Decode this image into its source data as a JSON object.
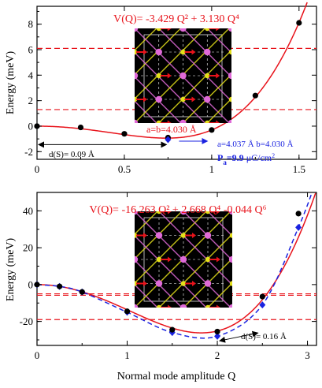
{
  "colors": {
    "red": "#e8131b",
    "blue": "#1a22e0",
    "black": "#000000",
    "atom_pink": "#e06ad8",
    "atom_yellow": "#e4e01a",
    "inset_bg": "#000000"
  },
  "xlabel": "Normal mode amplitude Q",
  "chart_data": [
    {
      "type": "line",
      "ylabel": "Energy (meV)",
      "xlim": [
        0,
        1.6
      ],
      "ylim": [
        -2.6,
        9.4
      ],
      "xticks": [
        0,
        0.5,
        1,
        1.5
      ],
      "xtick_labels": [
        "0",
        "0.5",
        "1",
        "1.5"
      ],
      "yticks": [
        -2,
        0,
        2,
        4,
        6,
        8
      ],
      "ytick_labels": [
        "-2",
        "0",
        "2",
        "4",
        "6",
        "8"
      ],
      "formula": "V(Q)= -3.429 Q² + 3.130 Q⁴",
      "fit": {
        "a2": -3.429,
        "a4": 3.13,
        "a6": 0
      },
      "points": {
        "x": [
          0,
          0.25,
          0.5,
          0.75,
          1.0,
          1.25,
          1.5
        ],
        "y": [
          0.0,
          -0.1,
          -0.6,
          -0.9,
          -0.3,
          2.4,
          8.1
        ]
      },
      "blue_point": {
        "x": 0.75,
        "y": -1.05
      },
      "hlines": [
        6.1,
        1.3
      ],
      "annotations": {
        "inset_label": "a=b=4.030 Å",
        "ds_label": "d(S)= 0.09 Å",
        "lattice_label": "a=4.037 Å b=4.030 Å",
        "polar_label": "P",
        "polar_sub": "a",
        "polar_value": "=9.9",
        "polar_unit": " μC/cm",
        "polar_exp": "2"
      }
    },
    {
      "type": "line",
      "ylabel": "Energy (meV)",
      "xlim": [
        0,
        3.1
      ],
      "ylim": [
        -33,
        50
      ],
      "xticks": [
        0,
        1,
        2,
        3
      ],
      "xtick_labels": [
        "0",
        "1",
        "2",
        "3"
      ],
      "yticks": [
        -20,
        0,
        20,
        40
      ],
      "ytick_labels": [
        "-20",
        "0",
        "20",
        "40"
      ],
      "formula": "V(Q)= -16.263 Q² + 2.668 Q⁴ -0.044 Q⁶",
      "fit": {
        "a2": -16.263,
        "a4": 2.668,
        "a6": -0.044
      },
      "points": {
        "x": [
          0,
          0.25,
          0.5,
          1.0,
          1.5,
          2.0,
          2.5,
          2.9
        ],
        "y": [
          0.0,
          -1.0,
          -4.0,
          -14.5,
          -24.5,
          -25.5,
          -6.5,
          38.5
        ]
      },
      "blue_points": {
        "x": [
          0,
          0.25,
          0.5,
          1.0,
          1.5,
          2.0,
          2.5,
          2.9
        ],
        "y": [
          0.0,
          -1.0,
          -4.0,
          -15.0,
          -26.0,
          -28.0,
          -11.0,
          31.0
        ]
      },
      "hlines": [
        -5.0,
        -5.8,
        -19.0
      ],
      "annotations": {
        "ds_label": "d(S)= 0.16 Å"
      }
    }
  ]
}
